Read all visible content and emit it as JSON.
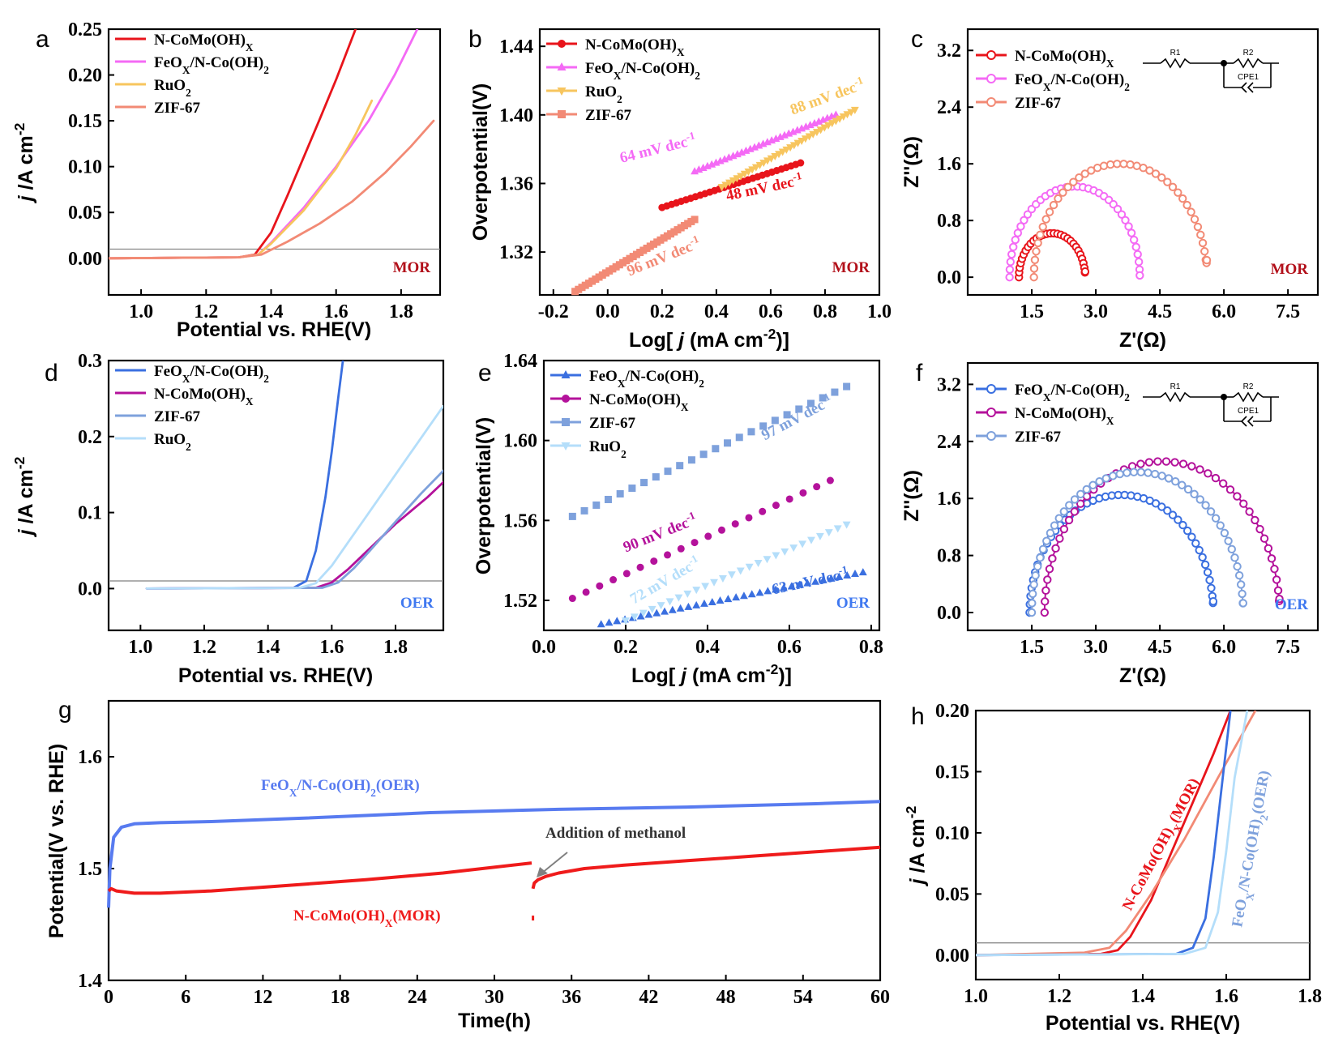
{
  "colors": {
    "red": "#e8141b",
    "pink": "#f46af5",
    "yellow": "#f7c55e",
    "salmon": "#f28a75",
    "blue": "#3a6fe0",
    "purple": "#b4129b",
    "steel": "#7ea1dc",
    "lightblue": "#b4defa",
    "mor": "#b2101a",
    "oer": "#3f78f0",
    "stabBlue": "#587bf0",
    "stabRed": "#ef1b1b"
  },
  "chart_data": [
    {
      "id": "a",
      "panel_label": "a",
      "type": "line",
      "xlabel": "Potential vs. RHE(V)",
      "ylabel": "j /A cm-2",
      "xlim": [
        0.9,
        1.92
      ],
      "ylim": [
        -0.04,
        0.25
      ],
      "xticks": [
        "1.0",
        "1.2",
        "1.4",
        "1.6",
        "1.8"
      ],
      "yticks": [
        "0.00",
        "0.05",
        "0.10",
        "0.15",
        "0.20",
        "0.25"
      ],
      "tag": "MOR",
      "hline": 0.01,
      "legend": [
        "N-CoMo(OH)X",
        "FeOX/N-Co(OH)2",
        "RuO2",
        "ZIF-67"
      ],
      "series": [
        {
          "name": "N-CoMo(OH)X",
          "color": "red",
          "x": [
            0.9,
            1.3,
            1.35,
            1.4,
            1.45,
            1.5,
            1.55,
            1.6,
            1.66
          ],
          "y": [
            0,
            0.001,
            0.004,
            0.028,
            0.068,
            0.11,
            0.152,
            0.195,
            0.25
          ]
        },
        {
          "name": "FeOX/N-Co(OH)2",
          "color": "pink",
          "x": [
            0.9,
            1.3,
            1.36,
            1.4,
            1.5,
            1.6,
            1.7,
            1.78,
            1.85
          ],
          "y": [
            0,
            0.001,
            0.004,
            0.017,
            0.055,
            0.1,
            0.15,
            0.2,
            0.25
          ]
        },
        {
          "name": "RuO2",
          "color": "yellow",
          "x": [
            0.9,
            1.3,
            1.36,
            1.4,
            1.5,
            1.6,
            1.66,
            1.71
          ],
          "y": [
            0,
            0.001,
            0.004,
            0.016,
            0.052,
            0.098,
            0.135,
            0.172
          ]
        },
        {
          "name": "ZIF-67",
          "color": "salmon",
          "x": [
            0.9,
            1.3,
            1.37,
            1.45,
            1.55,
            1.65,
            1.75,
            1.83,
            1.9
          ],
          "y": [
            0,
            0.001,
            0.004,
            0.018,
            0.038,
            0.062,
            0.093,
            0.122,
            0.15
          ]
        }
      ]
    },
    {
      "id": "b",
      "panel_label": "b",
      "type": "scatter",
      "xlabel": "Log[ j (mA cm-2)]",
      "ylabel": "Overpotential(V)",
      "xlim": [
        -0.25,
        1.0
      ],
      "ylim": [
        1.295,
        1.45
      ],
      "xticks": [
        "-0.2",
        "0.0",
        "0.2",
        "0.4",
        "0.6",
        "0.8",
        "1.0"
      ],
      "yticks": [
        "1.32",
        "1.36",
        "1.40",
        "1.44"
      ],
      "tag": "MOR",
      "legend": [
        "N-CoMo(OH)X",
        "FeOX/N-Co(OH)2",
        "RuO2",
        "ZIF-67"
      ],
      "series": [
        {
          "name": "N-CoMo(OH)X",
          "color": "red",
          "marker": "circle",
          "x0": 0.2,
          "x1": 0.71,
          "y0": 1.346,
          "y1": 1.372,
          "n": 30
        },
        {
          "name": "FeOX/N-Co(OH)2",
          "color": "pink",
          "marker": "tri-up",
          "x0": 0.32,
          "x1": 0.84,
          "y0": 1.367,
          "y1": 1.4,
          "n": 34
        },
        {
          "name": "RuO2",
          "color": "yellow",
          "marker": "tri-down",
          "x0": 0.42,
          "x1": 0.91,
          "y0": 1.358,
          "y1": 1.403,
          "n": 36
        },
        {
          "name": "ZIF-67",
          "color": "salmon",
          "marker": "square",
          "x0": -0.12,
          "x1": 0.32,
          "y0": 1.297,
          "y1": 1.339,
          "n": 36
        }
      ],
      "annotations": [
        {
          "text": "64 mV dec",
          "sup": "-1",
          "color": "pink",
          "x": 0.05,
          "y": 1.372,
          "rot": -14
        },
        {
          "text": "88 mV dec",
          "sup": "-1",
          "color": "yellow",
          "x": 0.68,
          "y": 1.4,
          "rot": -20
        },
        {
          "text": "48 mV dec",
          "sup": "-1",
          "color": "red",
          "x": 0.44,
          "y": 1.35,
          "rot": -12
        },
        {
          "text": "96 mV dec",
          "sup": "-1",
          "color": "salmon",
          "x": 0.08,
          "y": 1.306,
          "rot": -22
        }
      ]
    },
    {
      "id": "c",
      "panel_label": "c",
      "type": "scatter",
      "xlabel": "Z'(Ω)",
      "ylabel": "Z''(Ω)",
      "xlim": [
        0.0,
        8.2
      ],
      "ylim": [
        -0.25,
        3.5
      ],
      "xticks": [
        "1.5",
        "3.0",
        "4.5",
        "6.0",
        "7.5"
      ],
      "yticks": [
        "0.0",
        "0.8",
        "1.6",
        "2.4",
        "3.2"
      ],
      "tag": "MOR",
      "circuit": [
        "R1",
        "R2",
        "CPE1"
      ],
      "legend": [
        "N-CoMo(OH)X",
        "FeOX/N-Co(OH)2",
        "ZIF-67"
      ],
      "series": [
        {
          "name": "N-CoMo(OH)X",
          "color": "red",
          "x0": 1.2,
          "x1": 2.75,
          "h": 0.62,
          "tail": 0.1,
          "n": 30
        },
        {
          "name": "FeOX/N-Co(OH)2",
          "color": "pink",
          "x0": 0.98,
          "x1": 4.03,
          "h": 1.28,
          "tail": 0.03,
          "n": 38
        },
        {
          "name": "ZIF-67",
          "color": "salmon",
          "x0": 1.55,
          "x1": 5.6,
          "h": 1.6,
          "tail": 0.28,
          "n": 42
        }
      ]
    },
    {
      "id": "d",
      "panel_label": "d",
      "type": "line",
      "xlabel": "Potential vs. RHE(V)",
      "ylabel": "j /A cm-2",
      "xlim": [
        0.9,
        1.95
      ],
      "ylim": [
        -0.055,
        0.3
      ],
      "xticks": [
        "1.0",
        "1.2",
        "1.4",
        "1.6",
        "1.8"
      ],
      "yticks": [
        "0.0",
        "0.1",
        "0.2",
        "0.3"
      ],
      "tag": "OER",
      "hline": 0.01,
      "legend": [
        "FeOX/N-Co(OH)2",
        "N-CoMo(OH)X",
        "ZIF-67",
        "RuO2"
      ],
      "series": [
        {
          "name": "FeOX/N-Co(OH)2",
          "color": "blue",
          "x": [
            1.02,
            1.48,
            1.52,
            1.55,
            1.58,
            1.6,
            1.62,
            1.635
          ],
          "y": [
            0,
            0.001,
            0.01,
            0.05,
            0.12,
            0.18,
            0.25,
            0.3
          ]
        },
        {
          "name": "N-CoMo(OH)X",
          "color": "purple",
          "x": [
            1.02,
            1.55,
            1.6,
            1.65,
            1.7,
            1.8,
            1.9,
            1.95
          ],
          "y": [
            0,
            0.001,
            0.008,
            0.025,
            0.045,
            0.085,
            0.12,
            0.14
          ]
        },
        {
          "name": "ZIF-67",
          "color": "steel",
          "x": [
            1.02,
            1.57,
            1.62,
            1.67,
            1.72,
            1.8,
            1.88,
            1.95
          ],
          "y": [
            0,
            0.001,
            0.008,
            0.027,
            0.05,
            0.088,
            0.125,
            0.155
          ]
        },
        {
          "name": "RuO2",
          "color": "lightblue",
          "x": [
            1.02,
            1.5,
            1.55,
            1.6,
            1.65,
            1.7,
            1.8,
            1.9,
            1.95
          ],
          "y": [
            0,
            0.001,
            0.007,
            0.03,
            0.06,
            0.09,
            0.15,
            0.21,
            0.24
          ]
        }
      ]
    },
    {
      "id": "e",
      "panel_label": "e",
      "type": "scatter",
      "xlabel": "Log[ j (mA cm-2)]",
      "ylabel": "Overpotential(V)",
      "xlim": [
        0.0,
        0.82
      ],
      "ylim": [
        1.505,
        1.64
      ],
      "xticks": [
        "0.0",
        "0.2",
        "0.4",
        "0.6",
        "0.8"
      ],
      "yticks": [
        "1.52",
        "1.56",
        "1.60",
        "1.64"
      ],
      "tag": "OER",
      "legend": [
        "FeOX/N-Co(OH)2",
        "N-CoMo(OH)X",
        "ZIF-67",
        "RuO2"
      ],
      "series": [
        {
          "name": "FeOX/N-Co(OH)2",
          "color": "blue",
          "marker": "tri-up",
          "x0": 0.14,
          "x1": 0.78,
          "y0": 1.508,
          "y1": 1.534,
          "n": 34
        },
        {
          "name": "N-CoMo(OH)X",
          "color": "purple",
          "marker": "circle",
          "x0": 0.07,
          "x1": 0.7,
          "y0": 1.521,
          "y1": 1.58,
          "n": 20
        },
        {
          "name": "ZIF-67",
          "color": "steel",
          "marker": "square",
          "x0": 0.07,
          "x1": 0.74,
          "y0": 1.562,
          "y1": 1.627,
          "n": 24
        },
        {
          "name": "RuO2",
          "color": "lightblue",
          "marker": "tri-down",
          "x0": 0.2,
          "x1": 0.74,
          "y0": 1.51,
          "y1": 1.558,
          "n": 26
        }
      ],
      "annotations": [
        {
          "text": "97 mV dec",
          "sup": "-1",
          "color": "steel",
          "x": 0.54,
          "y": 1.6,
          "rot": -28
        },
        {
          "text": "90  mV dec",
          "sup": "-1",
          "color": "purple",
          "x": 0.2,
          "y": 1.544,
          "rot": -22
        },
        {
          "text": "72  mV dec",
          "sup": "-1",
          "color": "lightblue",
          "x": 0.22,
          "y": 1.518,
          "rot": -30
        },
        {
          "text": "63  mV dec",
          "sup": "-1",
          "color": "blue",
          "x": 0.56,
          "y": 1.523,
          "rot": -12
        }
      ]
    },
    {
      "id": "f",
      "panel_label": "f",
      "type": "scatter",
      "xlabel": "Z'(Ω)",
      "ylabel": "Z''(Ω)",
      "xlim": [
        0.0,
        8.2
      ],
      "ylim": [
        -0.25,
        3.5
      ],
      "xticks": [
        "1.5",
        "3.0",
        "4.5",
        "6.0",
        "7.5"
      ],
      "yticks": [
        "0.0",
        "0.8",
        "1.6",
        "2.4",
        "3.2"
      ],
      "tag": "OER",
      "circuit": [
        "R1",
        "R2",
        "CPE1"
      ],
      "legend": [
        "FeOX/N-Co(OH)2",
        "N-CoMo(OH)X",
        "ZIF-67"
      ],
      "series": [
        {
          "name": "FeOX/N-Co(OH)2",
          "color": "blue",
          "x0": 1.45,
          "x1": 5.75,
          "h": 1.65,
          "tail": 0.18,
          "n": 46
        },
        {
          "name": "N-CoMo(OH)X",
          "color": "purple",
          "x0": 1.8,
          "x1": 7.3,
          "h": 2.12,
          "tail": 0.22,
          "n": 44
        },
        {
          "name": "ZIF-67",
          "color": "steel",
          "x0": 1.5,
          "x1": 6.45,
          "h": 1.97,
          "tail": 0.15,
          "n": 48
        }
      ]
    },
    {
      "id": "g",
      "panel_label": "g",
      "type": "line",
      "xlabel": "Time(h)",
      "ylabel": "Potential(V vs. RHE)",
      "xlim": [
        0,
        60
      ],
      "ylim": [
        1.4,
        1.65
      ],
      "xticks": [
        "0",
        "6",
        "12",
        "18",
        "24",
        "30",
        "36",
        "42",
        "48",
        "54",
        "60"
      ],
      "yticks": [
        "1.4",
        "1.5",
        "1.6"
      ],
      "annotation": "Addition of methanol",
      "series": [
        {
          "name": "FeOX/N-Co(OH)2(OER)",
          "color": "stabBlue",
          "x": [
            0,
            0.1,
            0.4,
            1,
            2,
            4,
            8,
            15,
            25,
            35,
            45,
            55,
            60
          ],
          "y": [
            1.465,
            1.5,
            1.528,
            1.537,
            1.54,
            1.541,
            1.542,
            1.545,
            1.55,
            1.553,
            1.555,
            1.558,
            1.56
          ]
        },
        {
          "name": "N-CoMo(OH)X(MOR)",
          "color": "stabRed",
          "x": [
            0,
            0.2,
            0.6,
            2,
            4,
            8,
            14,
            20,
            26,
            32.9
          ],
          "y": [
            1.48,
            1.482,
            1.48,
            1.478,
            1.478,
            1.48,
            1.485,
            1.49,
            1.496,
            1.505
          ]
        },
        {
          "name": "N-CoMo(OH)X(MOR)",
          "color": "stabRed",
          "x": [
            33.0,
            33.1,
            33.4,
            34,
            35,
            37,
            40,
            45,
            50,
            55,
            60
          ],
          "y": [
            1.482,
            1.487,
            1.49,
            1.493,
            1.496,
            1.5,
            1.503,
            1.507,
            1.511,
            1.515,
            1.519
          ]
        }
      ]
    },
    {
      "id": "h",
      "panel_label": "h",
      "type": "line",
      "xlabel": "Potential vs. RHE(V)",
      "ylabel": "j /A cm-2",
      "xlim": [
        1.0,
        1.8
      ],
      "ylim": [
        -0.02,
        0.2
      ],
      "xticks": [
        "1.0",
        "1.2",
        "1.4",
        "1.6",
        "1.8"
      ],
      "yticks": [
        "0.00",
        "0.05",
        "0.10",
        "0.15",
        "0.20"
      ],
      "hline": 0.01,
      "series": [
        {
          "name": "N-CoMo(OH)X(MOR)",
          "color": "red",
          "x": [
            1.0,
            1.3,
            1.34,
            1.37,
            1.42,
            1.47,
            1.52,
            1.57,
            1.61
          ],
          "y": [
            0,
            0.001,
            0.004,
            0.015,
            0.045,
            0.085,
            0.125,
            0.165,
            0.2
          ]
        },
        {
          "name": "",
          "color": "salmon",
          "x": [
            1.0,
            1.26,
            1.32,
            1.36,
            1.42,
            1.5,
            1.58,
            1.67
          ],
          "y": [
            0,
            0.002,
            0.006,
            0.02,
            0.05,
            0.095,
            0.145,
            0.2
          ]
        },
        {
          "name": "FeOX/N-Co(OH)2(OER)",
          "color": "blue",
          "x": [
            1.0,
            1.48,
            1.52,
            1.55,
            1.57,
            1.59,
            1.61
          ],
          "y": [
            0,
            0.001,
            0.006,
            0.03,
            0.08,
            0.14,
            0.2
          ]
        },
        {
          "name": "",
          "color": "lightblue",
          "x": [
            1.0,
            1.5,
            1.55,
            1.58,
            1.6,
            1.62,
            1.65
          ],
          "y": [
            0,
            0.001,
            0.006,
            0.035,
            0.085,
            0.145,
            0.2
          ]
        }
      ]
    }
  ]
}
